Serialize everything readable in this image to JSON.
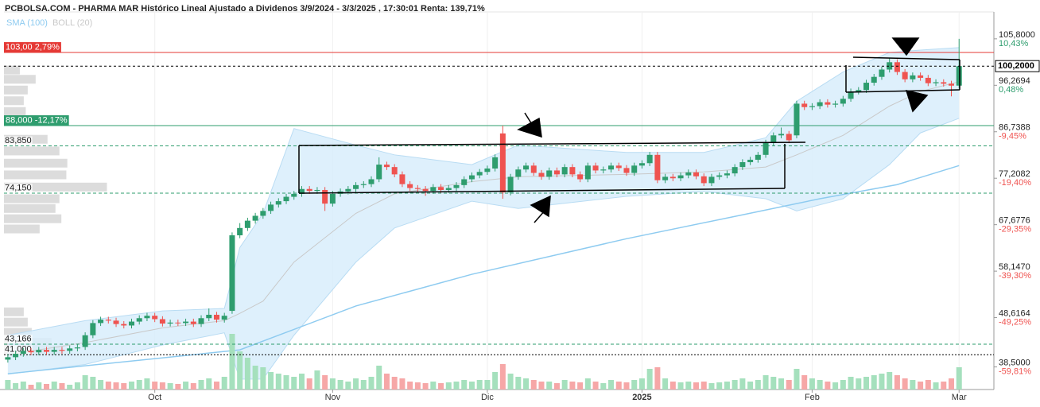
{
  "chart_data": {
    "type": "candlestick",
    "title": "PCBOLSA.COM - PHARMA MAR Histórico Lineal Ajustado a Dividenos 3/9/2024 - 3/3/2025 , 17:30:01 Renta: 139,71%",
    "legend": [
      {
        "name": "SMA (100)",
        "color": "#8ecbf0"
      },
      {
        "name": "BOLL (20)",
        "color": "#c9c9c9"
      }
    ],
    "up_color": "#2e9d6e",
    "down_color": "#ef5350",
    "open": [
      40.0,
      40.5,
      41.2,
      41.8,
      41.5,
      42.0,
      41.6,
      42.0,
      41.8,
      42.3,
      42.6,
      45.0,
      47.5,
      48.2,
      48.0,
      47.3,
      47.0,
      47.8,
      48.5,
      49.0,
      48.3,
      47.4,
      47.6,
      47.5,
      47.8,
      47.3,
      48.5,
      49.2,
      48.2,
      50.0,
      65.5,
      67.0,
      68.5,
      69.5,
      70.5,
      71.8,
      72.5,
      73.4,
      74.0,
      75.0,
      74.6,
      74.8,
      72.0,
      74.0,
      74.5,
      75.0,
      75.8,
      76.0,
      77.0,
      80.0,
      79.5,
      78.0,
      76.0,
      75.2,
      75.0,
      74.6,
      75.4,
      74.8,
      75.2,
      75.8,
      77.0,
      77.8,
      78.5,
      79.2,
      86.4,
      74.3,
      77.5,
      79.0,
      79.8,
      78.3,
      77.5,
      78.8,
      78.0,
      79.5,
      78.0,
      77.0,
      79.8,
      78.8,
      79.0,
      79.8,
      79.3,
      78.3,
      79.8,
      80.3,
      82.0,
      76.8,
      77.5,
      77.2,
      77.8,
      78.4,
      77.6,
      76.2,
      77.5,
      77.8,
      78.2,
      79.5,
      80.5,
      81.0,
      82.0,
      84.5,
      86.0,
      86.3,
      86.0,
      92.5,
      91.8,
      92.0,
      92.8,
      92.3,
      92.5,
      93.5,
      95.0,
      95.3,
      96.8,
      98.0,
      99.5,
      101.0,
      99.0,
      97.5,
      98.3,
      97.8,
      96.7,
      96.9,
      96.6,
      96.2
    ],
    "high": [
      41.1,
      41.8,
      42.4,
      42.4,
      42.6,
      42.6,
      42.6,
      42.6,
      42.9,
      43.1,
      45.6,
      48.1,
      48.8,
      48.8,
      48.6,
      47.9,
      48.4,
      49.1,
      49.6,
      49.6,
      48.9,
      48.2,
      48.2,
      48.4,
      48.4,
      49.1,
      50.5,
      49.8,
      49.6,
      66.1,
      68.0,
      69.1,
      70.1,
      71.1,
      72.4,
      73.1,
      74.0,
      74.6,
      75.6,
      75.6,
      75.4,
      75.4,
      74.6,
      75.1,
      75.6,
      76.4,
      76.6,
      77.6,
      81.5,
      80.6,
      80.1,
      78.6,
      76.6,
      75.8,
      75.6,
      76.0,
      76.0,
      75.8,
      76.4,
      77.6,
      78.4,
      79.1,
      79.8,
      82.1,
      88.0,
      78.1,
      79.6,
      80.4,
      80.4,
      78.9,
      79.4,
      79.4,
      80.1,
      80.1,
      78.6,
      80.4,
      80.4,
      79.6,
      80.4,
      80.4,
      79.9,
      80.4,
      80.9,
      82.6,
      82.6,
      78.1,
      78.1,
      78.4,
      79.0,
      79.0,
      78.2,
      78.1,
      78.4,
      78.8,
      80.1,
      81.1,
      81.6,
      82.6,
      85.1,
      86.6,
      87.6,
      86.9,
      93.1,
      93.1,
      92.6,
      93.4,
      93.4,
      93.1,
      94.1,
      95.6,
      95.9,
      97.4,
      98.6,
      100.1,
      101.8,
      101.6,
      99.6,
      98.9,
      98.9,
      98.4,
      97.5,
      97.5,
      97.2,
      105.8
    ],
    "low": [
      39.4,
      39.9,
      40.6,
      40.9,
      40.9,
      41.0,
      41.0,
      41.2,
      41.2,
      41.7,
      42.0,
      44.4,
      46.9,
      47.4,
      46.7,
      46.4,
      46.4,
      47.2,
      47.9,
      47.7,
      46.8,
      46.8,
      46.9,
      46.9,
      46.7,
      46.7,
      47.9,
      47.6,
      47.6,
      49.4,
      64.9,
      66.4,
      67.9,
      68.9,
      69.9,
      71.2,
      71.9,
      72.8,
      73.4,
      74.0,
      74.0,
      70.5,
      71.4,
      73.4,
      73.9,
      74.4,
      75.2,
      75.4,
      76.4,
      78.9,
      77.4,
      75.4,
      74.6,
      74.4,
      73.6,
      74.0,
      74.2,
      74.2,
      74.6,
      75.2,
      76.4,
      77.2,
      77.9,
      78.6,
      73.0,
      73.7,
      76.9,
      78.4,
      77.7,
      76.9,
      76.9,
      77.4,
      77.4,
      77.4,
      76.4,
      76.4,
      78.2,
      78.2,
      78.4,
      78.7,
      77.7,
      77.7,
      79.2,
      79.7,
      76.2,
      76.2,
      76.6,
      76.6,
      77.2,
      77.0,
      75.6,
      75.6,
      76.9,
      77.2,
      77.6,
      78.9,
      79.9,
      80.4,
      81.4,
      83.9,
      85.4,
      84.4,
      85.4,
      91.2,
      91.2,
      91.4,
      91.7,
      91.7,
      91.9,
      92.9,
      94.4,
      94.7,
      96.2,
      97.4,
      98.9,
      98.4,
      96.9,
      96.9,
      97.2,
      96.1,
      96.1,
      96.0,
      94.0,
      95.6
    ],
    "close": [
      40.5,
      41.2,
      41.8,
      41.5,
      42.0,
      41.6,
      42.0,
      41.8,
      42.3,
      42.5,
      45.0,
      47.5,
      48.2,
      48.0,
      47.3,
      47.0,
      47.8,
      48.5,
      49.0,
      48.3,
      47.4,
      47.6,
      47.5,
      47.8,
      47.3,
      48.5,
      49.2,
      48.2,
      49.0,
      65.5,
      67.0,
      68.5,
      69.5,
      70.5,
      71.8,
      72.5,
      73.4,
      74.0,
      75.0,
      74.6,
      74.8,
      72.0,
      74.0,
      74.5,
      75.0,
      75.8,
      76.0,
      77.0,
      80.0,
      79.5,
      78.0,
      76.0,
      75.2,
      75.0,
      74.6,
      75.4,
      74.8,
      75.2,
      75.8,
      77.0,
      77.8,
      78.5,
      79.2,
      81.5,
      74.3,
      77.5,
      79.0,
      79.8,
      78.3,
      77.5,
      78.8,
      78.0,
      79.5,
      78.0,
      77.0,
      79.8,
      78.8,
      79.0,
      79.8,
      79.3,
      78.3,
      79.8,
      80.3,
      82.0,
      76.8,
      77.5,
      77.2,
      77.8,
      78.4,
      77.6,
      76.2,
      77.5,
      77.8,
      78.2,
      79.5,
      80.5,
      81.0,
      82.0,
      84.5,
      86.0,
      86.3,
      85.0,
      92.5,
      91.8,
      92.0,
      92.8,
      92.3,
      92.5,
      93.5,
      95.0,
      95.3,
      96.8,
      98.0,
      99.5,
      101.0,
      99.0,
      97.5,
      98.3,
      97.8,
      96.7,
      96.9,
      96.6,
      96.2,
      100.2
    ],
    "volume": {
      "up_color": "#a5e0bd",
      "down_color": "#f6a7a7",
      "lim": [
        0,
        100
      ],
      "values": [
        12,
        8,
        10,
        6,
        9,
        7,
        10,
        8,
        6,
        9,
        18,
        16,
        12,
        10,
        9,
        8,
        10,
        12,
        14,
        10,
        9,
        8,
        7,
        10,
        8,
        12,
        14,
        10,
        16,
        70,
        48,
        40,
        30,
        28,
        22,
        20,
        18,
        16,
        20,
        14,
        24,
        18,
        14,
        12,
        10,
        14,
        12,
        16,
        30,
        20,
        16,
        14,
        10,
        9,
        8,
        10,
        8,
        9,
        10,
        12,
        10,
        12,
        12,
        22,
        32,
        20,
        16,
        14,
        12,
        10,
        10,
        8,
        12,
        10,
        9,
        14,
        10,
        8,
        12,
        10,
        9,
        12,
        14,
        26,
        28,
        14,
        10,
        9,
        10,
        9,
        10,
        8,
        9,
        10,
        12,
        14,
        10,
        12,
        18,
        16,
        14,
        12,
        26,
        18,
        14,
        12,
        10,
        9,
        12,
        16,
        14,
        16,
        18,
        20,
        22,
        18,
        14,
        12,
        10,
        12,
        9,
        10,
        14,
        28
      ]
    },
    "sma": {
      "x": [
        0,
        30,
        45,
        60,
        80,
        95,
        105,
        115,
        123
      ],
      "values": [
        37.1,
        42.0,
        51.0,
        57.5,
        64.8,
        69.7,
        73.0,
        75.9,
        79.8
      ]
    },
    "boll": {
      "fill": "#d8edfb",
      "line_color": "#c9c9c9",
      "x": [
        0,
        10,
        20,
        28,
        30,
        33,
        37,
        45,
        50,
        60,
        66,
        80,
        90,
        98,
        102,
        108,
        114,
        118,
        123
      ],
      "upper": [
        45.0,
        48.0,
        50.0,
        50.5,
        63.0,
        70.0,
        87.4,
        84.0,
        82.0,
        80.0,
        84.0,
        82.5,
        82.5,
        85.5,
        93.0,
        99.0,
        103.0,
        103.5,
        104.0
      ],
      "middle": [
        41.0,
        43.5,
        46.5,
        48.0,
        49.5,
        52.0,
        60.0,
        70.0,
        74.0,
        76.5,
        77.5,
        78.0,
        78.5,
        79.5,
        82.0,
        86.0,
        92.0,
        95.0,
        97.0
      ],
      "lower": [
        37.0,
        39.0,
        43.0,
        45.5,
        36.0,
        36.0,
        45.0,
        60.0,
        67.0,
        72.5,
        71.0,
        73.5,
        74.5,
        73.0,
        70.5,
        73.0,
        80.0,
        86.5,
        89.5
      ]
    },
    "volume_profile": {
      "color": "#dcdcdc",
      "lim": [
        0,
        1000
      ],
      "prices": [
        99.4,
        97.5,
        95.3,
        93.1,
        90.9,
        85.2,
        82.8,
        80.3,
        77.9,
        75.4,
        73.0,
        71.0,
        68.9,
        66.8,
        49.8,
        47.7,
        45.6,
        43.6,
        42.0
      ],
      "values": [
        16,
        32,
        24,
        20,
        22,
        44,
        56,
        64,
        63,
        104,
        56,
        52,
        58,
        36,
        20,
        24,
        28,
        48,
        60
      ]
    },
    "ylim": [
      33.87,
      111.32
    ],
    "yticks": [
      {
        "value": 38.5,
        "label": "38,5000"
      },
      {
        "value": 48.6164,
        "label": "48,6164"
      },
      {
        "value": 58.147,
        "label": "58,1470"
      },
      {
        "value": 67.6776,
        "label": "67,6776"
      },
      {
        "value": 77.2082,
        "label": "77,2082"
      },
      {
        "value": 86.7388,
        "label": "86,7388"
      },
      {
        "value": 96.2694,
        "label": "96,2694"
      },
      {
        "value": 105.8,
        "label": "105,8000"
      }
    ],
    "ytick_changes": [
      "-59,81%",
      "-49,25%",
      "-39,30%",
      "-29,35%",
      "-19,40%",
      "-9,45%",
      "0,48%",
      "10,43%"
    ],
    "xlim": [
      -0.5,
      127.5
    ],
    "xticks": [
      {
        "value": 19,
        "label": "Oct"
      },
      {
        "value": 42,
        "label": "Nov"
      },
      {
        "value": 62,
        "label": "Dic"
      },
      {
        "value": 82,
        "label": "2025"
      },
      {
        "value": 104,
        "label": "Feb"
      },
      {
        "value": 123,
        "label": "Mar"
      }
    ],
    "xgrid": true,
    "levels": [
      {
        "value": 103,
        "label": "103,00 2,79%",
        "color": "#e53935",
        "style": "solid",
        "boxed": true
      },
      {
        "value": 88,
        "label": "88,000 -12,17%",
        "color": "#2e9d6e",
        "style": "solid",
        "boxed": true
      },
      {
        "value": 83.85,
        "label": "83,850",
        "color": "#2e9d6e",
        "style": "dashed",
        "boxed": false
      },
      {
        "value": 74.15,
        "label": "74,150",
        "color": "#2e9d6e",
        "style": "dashed",
        "boxed": false
      },
      {
        "value": 43.166,
        "label": "43,166",
        "color": "#2e9d6e",
        "style": "dashed",
        "boxed": false
      },
      {
        "value": 41,
        "label": "41,000",
        "color": "#000000",
        "style": "dotted",
        "boxed": false
      }
    ],
    "last": {
      "value": 100.2,
      "label": "100,2000"
    }
  }
}
